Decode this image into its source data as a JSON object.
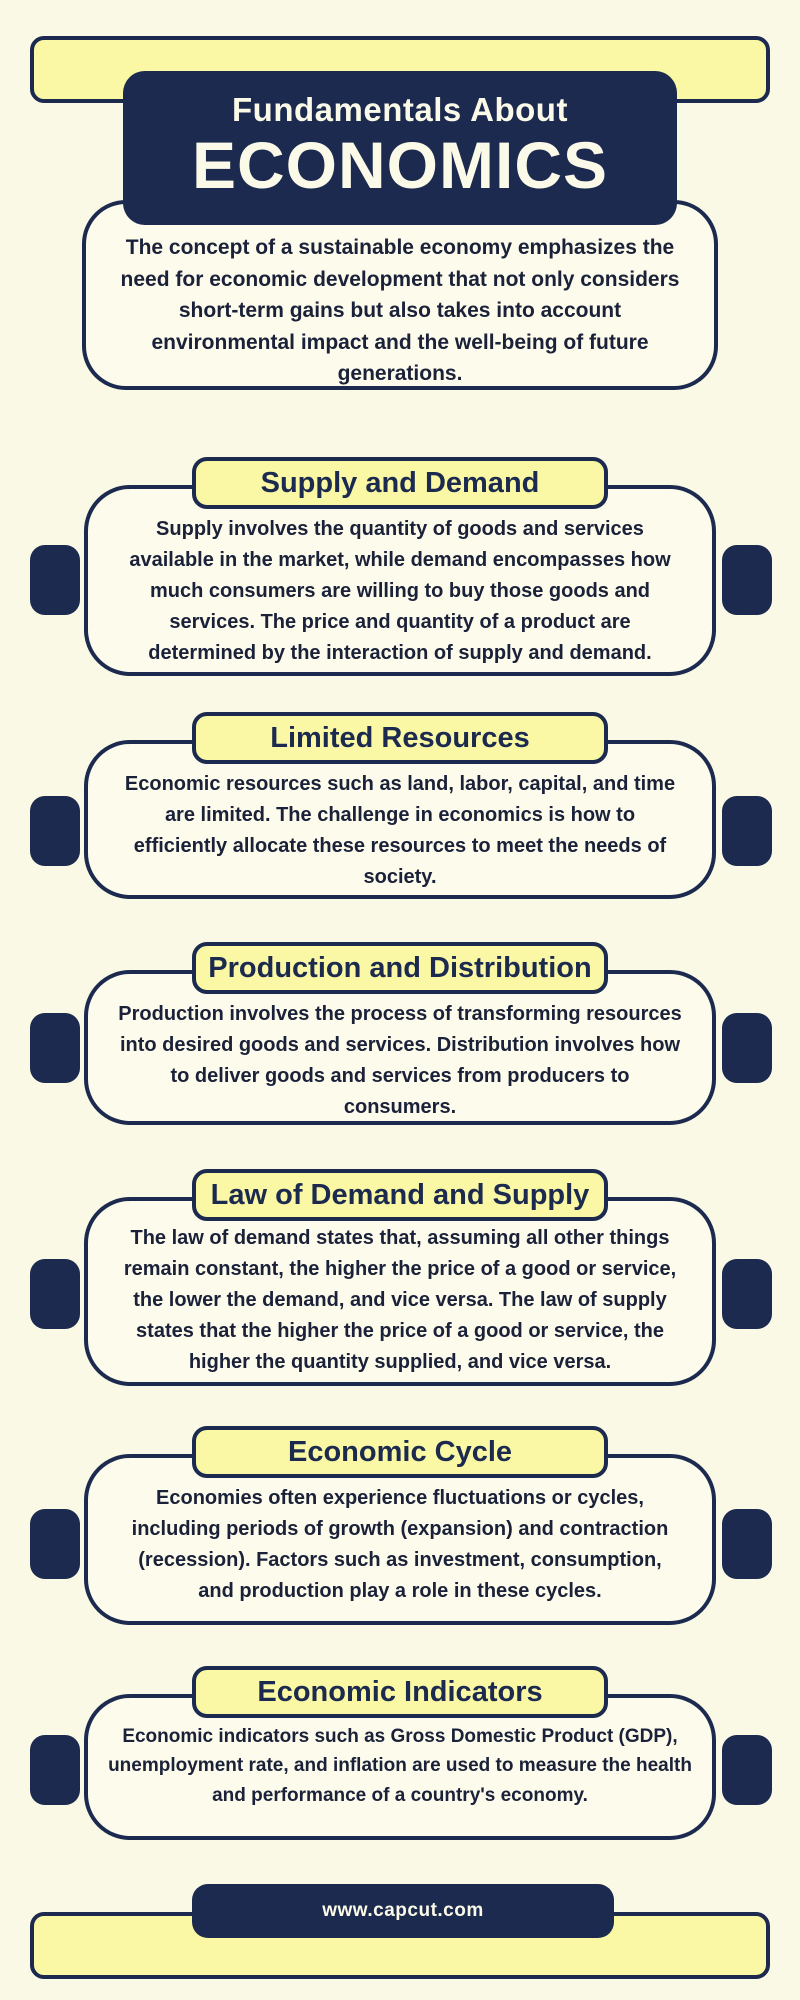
{
  "colors": {
    "navy": "#1B2A4E",
    "yellow": "#FAF8A4",
    "background": "#FAF9E5",
    "card_fill": "#FCFBEC",
    "ink": "#1A2138",
    "cream_text": "#FBF9E8"
  },
  "header": {
    "kicker": "Fundamentals About",
    "title": "ECONOMICS",
    "intro": "The concept of a sustainable economy emphasizes the need for economic development that not only considers short-term gains but also takes into account environmental impact and the well-being of future generations."
  },
  "sections": [
    {
      "title": "Supply and Demand",
      "body": "Supply involves the quantity of goods and services available in the market, while demand encompasses how much consumers are willing to buy those goods and services. The price and quantity of a product are determined by the interaction of supply and demand."
    },
    {
      "title": "Limited Resources",
      "body": "Economic resources such as land, labor, capital, and time are limited. The challenge in economics is how to efficiently allocate these resources to meet the needs of society."
    },
    {
      "title": "Production and Distribution",
      "body": "Production involves the process of transforming resources into desired goods and services. Distribution involves how to deliver goods and services from producers to consumers."
    },
    {
      "title": "Law of Demand and Supply",
      "body": "The law of demand states that, assuming all other things remain constant, the higher the price of a good or service, the lower the demand, and vice versa. The law of supply states that the higher the price of a good or service, the higher the quantity supplied, and vice versa."
    },
    {
      "title": "Economic Cycle",
      "body": "Economies often experience fluctuations or cycles, including periods of growth (expansion) and contraction (recession). Factors such as investment, consumption, and production play a role in these cycles."
    },
    {
      "title": "Economic Indicators",
      "body": "Economic indicators such as Gross Domestic Product (GDP), unemployment rate, and inflation are used to measure the health and performance of a country's economy."
    }
  ],
  "footer": {
    "url": "www.capcut.com"
  }
}
